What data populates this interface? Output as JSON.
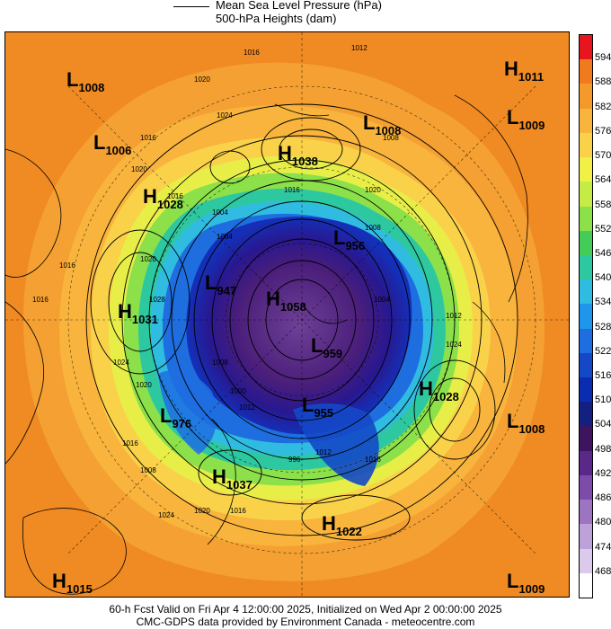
{
  "legend": {
    "line1": "Mean Sea Level Pressure (hPa)",
    "line2": "500-hPa Heights (dam)"
  },
  "colorbar": {
    "levels": [
      "594",
      "588",
      "582",
      "576",
      "570",
      "564",
      "558",
      "552",
      "546",
      "540",
      "534",
      "528",
      "522",
      "516",
      "510",
      "504",
      "498",
      "492",
      "486",
      "480",
      "474",
      "468"
    ],
    "colors": [
      "#e8141e",
      "#f07a1e",
      "#f49a2a",
      "#f8b43c",
      "#fad24a",
      "#f0f046",
      "#c4ec44",
      "#8ce04a",
      "#44cc5a",
      "#2ec8a0",
      "#30bce0",
      "#1e96ec",
      "#1e6ee0",
      "#1448c8",
      "#0a2cb0",
      "#142080",
      "#3c1460",
      "#5a2888",
      "#7c4ca8",
      "#9c74c0",
      "#bca2d8",
      "#dccaec",
      "#ffffff"
    ]
  },
  "centers": [
    {
      "type": "L",
      "value": "1008"
    },
    {
      "type": "H",
      "value": "1011"
    },
    {
      "type": "L",
      "value": "1009"
    },
    {
      "type": "L",
      "value": "1006"
    },
    {
      "type": "L",
      "value": "1008"
    },
    {
      "type": "H",
      "value": "1038"
    },
    {
      "type": "H",
      "value": "1028"
    },
    {
      "type": "L",
      "value": "956"
    },
    {
      "type": "L",
      "value": "947"
    },
    {
      "type": "H",
      "value": "1058"
    },
    {
      "type": "H",
      "value": "1031"
    },
    {
      "type": "L",
      "value": "959"
    },
    {
      "type": "H",
      "value": "1028"
    },
    {
      "type": "L",
      "value": "976"
    },
    {
      "type": "L",
      "value": "955"
    },
    {
      "type": "L",
      "value": "1008"
    },
    {
      "type": "H",
      "value": "1037"
    },
    {
      "type": "H",
      "value": "1022"
    },
    {
      "type": "H",
      "value": "1015"
    },
    {
      "type": "L",
      "value": "1009"
    }
  ],
  "isobar_labels": [
    "1016",
    "1012",
    "1020",
    "1024",
    "1008",
    "1016",
    "1020",
    "1016",
    "1004",
    "1016",
    "1020",
    "1016",
    "1016",
    "1020",
    "1012",
    "1024",
    "1028",
    "1004",
    "1008",
    "1000",
    "1012",
    "1024",
    "1020",
    "1016",
    "1008",
    "996",
    "1012",
    "1016",
    "1024",
    "1020",
    "1016",
    "1008",
    "1004"
  ],
  "footer": {
    "line1": "60-h Fcst Valid on Fri Apr  4 12:00:00 2025, Initialized on Wed Apr  2 00:00:00 2025",
    "line2": "CMC-GDPS data provided by Environment Canada - meteocentre.com"
  }
}
